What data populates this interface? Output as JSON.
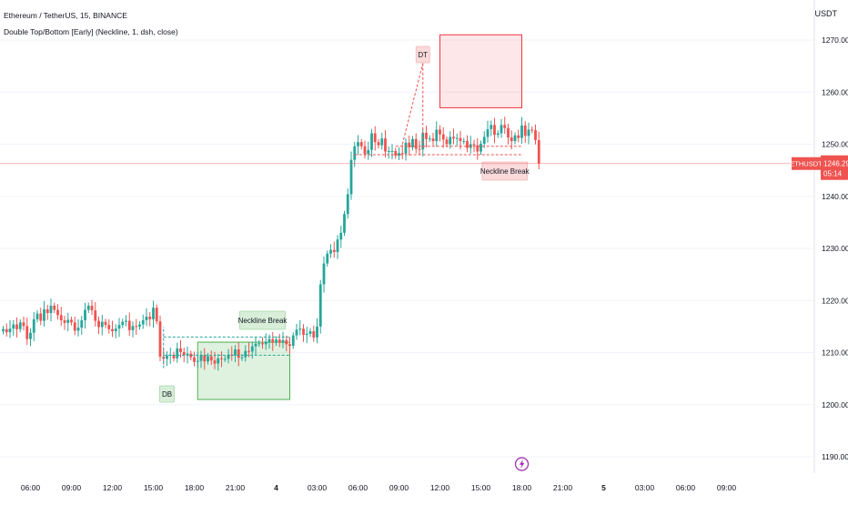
{
  "header": {
    "symbol_line": "Ethereum / TetherUS, 15, BINANCE",
    "indicator_line": "Double Top/Bottom [Early] (Neckline, 1, dsh, close)"
  },
  "price_axis": {
    "unit": "USDT",
    "ticks": [
      "1270.00",
      "1260.00",
      "1250.00",
      "1240.00",
      "1230.00",
      "1220.00",
      "1210.00",
      "1200.00",
      "1190.00"
    ]
  },
  "time_axis": {
    "ticks": [
      "06:00",
      "09:00",
      "12:00",
      "15:00",
      "18:00",
      "21:00",
      "4",
      "03:00",
      "06:00",
      "09:00",
      "12:00",
      "15:00",
      "18:00",
      "21:00",
      "5",
      "03:00",
      "06:00",
      "09:00"
    ]
  },
  "last_price": {
    "symbol": "ETHUSDT",
    "price": "1246.29",
    "countdown": "05:14",
    "value": 1246.29
  },
  "annotations": {
    "double_bottom": "DB",
    "double_top": "DT",
    "neckline_break_bottom": "Neckline Break",
    "neckline_break_top": "Neckline Break"
  },
  "colors": {
    "up": "#26a69a",
    "down": "#ef5350",
    "bull_zone": "#4caf50",
    "bear_zone": "#f23645",
    "text": "#131722",
    "grid": "#f0f3fa"
  },
  "chart_data": {
    "type": "candlestick",
    "title": "Ethereum / TetherUS, 15, BINANCE",
    "ylim": [
      1186,
      1278
    ],
    "y_unit": "USDT",
    "bar_interval_minutes": 15,
    "x_range": [
      "day 3 04:00",
      "day 5 10:15"
    ],
    "first_candle_time": "day 3 04:00",
    "closes": [
      1214.5,
      1213.9,
      1214.6,
      1215.4,
      1214.5,
      1215.8,
      1215.1,
      1212.6,
      1213.8,
      1216.4,
      1217.5,
      1216.1,
      1218.3,
      1217.6,
      1219.0,
      1218.2,
      1217.2,
      1216.2,
      1215.7,
      1216.3,
      1215.8,
      1214.2,
      1214.8,
      1216.2,
      1218.2,
      1219.0,
      1218.1,
      1216.1,
      1214.9,
      1215.9,
      1215.3,
      1214.5,
      1214.1,
      1214.6,
      1215.3,
      1215.9,
      1216.1,
      1214.3,
      1215.1,
      1215.0,
      1215.4,
      1216.2,
      1216.9,
      1216.4,
      1218.6,
      1216.0,
      1209.2,
      1208.8,
      1209.4,
      1209.6,
      1208.9,
      1210.8,
      1210.1,
      1209.5,
      1209.8,
      1209.1,
      1208.2,
      1208.4,
      1209.5,
      1208.3,
      1209.3,
      1208.5,
      1207.9,
      1208.9,
      1208.8,
      1208.8,
      1209.6,
      1209.5,
      1210.6,
      1209.0,
      1209.1,
      1210.3,
      1210.2,
      1211.2,
      1211.7,
      1211.8,
      1211.6,
      1212.1,
      1212.6,
      1211.9,
      1212.5,
      1211.9,
      1212.4,
      1211.6,
      1211.3,
      1213.3,
      1214.4,
      1214.6,
      1213.4,
      1213.6,
      1214.1,
      1212.9,
      1215.0,
      1223.1,
      1227.1,
      1229.0,
      1229.7,
      1229.3,
      1231.7,
      1233.0,
      1236.6,
      1240.4,
      1247.0,
      1249.6,
      1250.4,
      1249.6,
      1248.1,
      1248.9,
      1252.1,
      1250.4,
      1249.8,
      1251.1,
      1248.6,
      1248.7,
      1248.7,
      1247.8,
      1248.3,
      1248.2,
      1250.3,
      1249.4,
      1251.0,
      1249.1,
      1249.0,
      1252.2,
      1251.0,
      1251.1,
      1250.6,
      1252.8,
      1251.9,
      1250.9,
      1250.0,
      1251.4,
      1251.1,
      1251.2,
      1250.6,
      1250.6,
      1249.3,
      1250.0,
      1249.8,
      1248.6,
      1250.1,
      1251.4,
      1252.9,
      1253.7,
      1251.8,
      1252.1,
      1253.7,
      1253.1,
      1251.3,
      1250.6,
      1251.7,
      1251.2,
      1253.6,
      1251.6,
      1252.8,
      1252.7,
      1250.8,
      1246.3
    ],
    "patterns": [
      {
        "label": "DB",
        "type": "double_bottom",
        "neckline": 1213.0,
        "target_zone": [
          1201,
          1212
        ],
        "break_label": "Neckline Break"
      },
      {
        "label": "DT",
        "type": "double_top",
        "neckline": 1248.0,
        "target_zone": [
          1257,
          1271
        ],
        "break_label": "Neckline Break"
      }
    ],
    "last_price_line": 1246.29
  }
}
